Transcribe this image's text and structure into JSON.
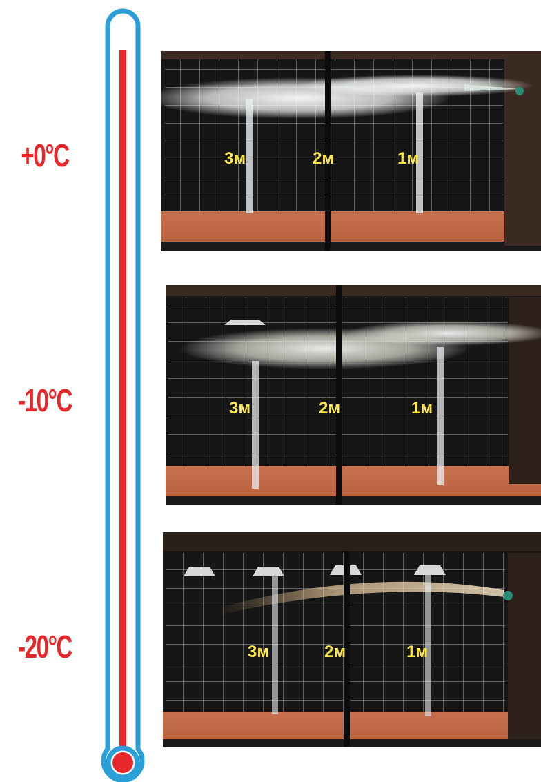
{
  "temperatures": [
    "+0°C",
    "-10°C",
    "-20°C"
  ],
  "distance_labels": [
    "3м",
    "2м",
    "1м"
  ],
  "colors": {
    "thermometer_outline": "#2a9fd8",
    "mercury": "#e8272a",
    "label_text": "#e8272a",
    "distance_text": "#ffe84a"
  },
  "thermometer_fill_fraction": 0.95,
  "icons": [
    "thermometer-icon"
  ]
}
